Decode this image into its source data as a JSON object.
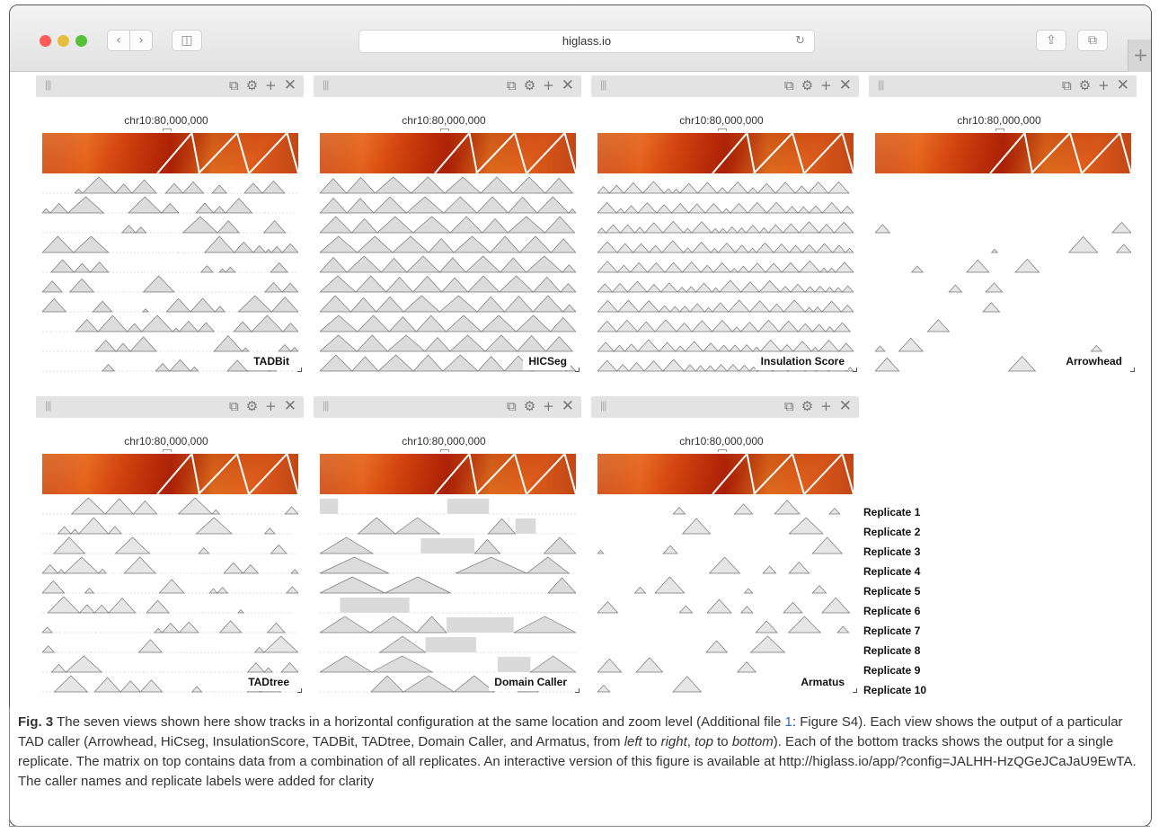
{
  "browser": {
    "url": "higlass.io",
    "traffic_colors": [
      "#fc5b57",
      "#e5bf3c",
      "#57c038"
    ],
    "back_icon": "chevron-left",
    "forward_icon": "chevron-right",
    "reload_icon": "reload"
  },
  "view_toolbar": {
    "icons": [
      "copy-icon",
      "gear-icon",
      "plus-icon",
      "close-icon"
    ]
  },
  "views": [
    {
      "id": "tadbit",
      "coordinate": "chr10:80,000,000",
      "caller": "TADBit"
    },
    {
      "id": "hicseg",
      "coordinate": "chr10:80,000,000",
      "caller": "HICSeg"
    },
    {
      "id": "insulation",
      "coordinate": "chr10:80,000,000",
      "caller": "Insulation Score"
    },
    {
      "id": "arrowhead",
      "coordinate": "chr10:80,000,000",
      "caller": "Arrowhead"
    },
    {
      "id": "tadtree",
      "coordinate": "chr10:80,000,000",
      "caller": "TADtree"
    },
    {
      "id": "domaincaller",
      "coordinate": "chr10:80,000,000",
      "caller": "Domain Caller"
    },
    {
      "id": "armatus",
      "coordinate": "chr10:80,000,000",
      "caller": "Armatus"
    }
  ],
  "replicates": [
    "Replicate 1",
    "Replicate 2",
    "Replicate 3",
    "Replicate 4",
    "Replicate 5",
    "Replicate 6",
    "Replicate 7",
    "Replicate 8",
    "Replicate 9",
    "Replicate 10"
  ],
  "caption": {
    "fig_label": "Fig. 3",
    "text_1": " The seven views shown here show tracks in a horizontal configuration at the same location and zoom level (Additional file ",
    "ref": "1",
    "text_2": ": Figure S4). Each view shows the output of a particular TAD caller (Arrowhead, HiCseg, InsulationScore, TADBit, TADtree, Domain Caller, and Armatus, from ",
    "em_left": "left",
    "text_3": " to ",
    "em_right": "right",
    "text_4": ", ",
    "em_top": "top",
    "text_5": " to ",
    "em_bottom": "bottom",
    "text_6": "). Each of the bottom tracks shows the output for a single replicate. The matrix on top contains data from a combination of all replicates. An interactive version of this figure is available at http://higlass.io/app/?config=JALHH-HzQGeJCaJaU9EwTA. The caller names and replicate labels were added for clarity"
  }
}
